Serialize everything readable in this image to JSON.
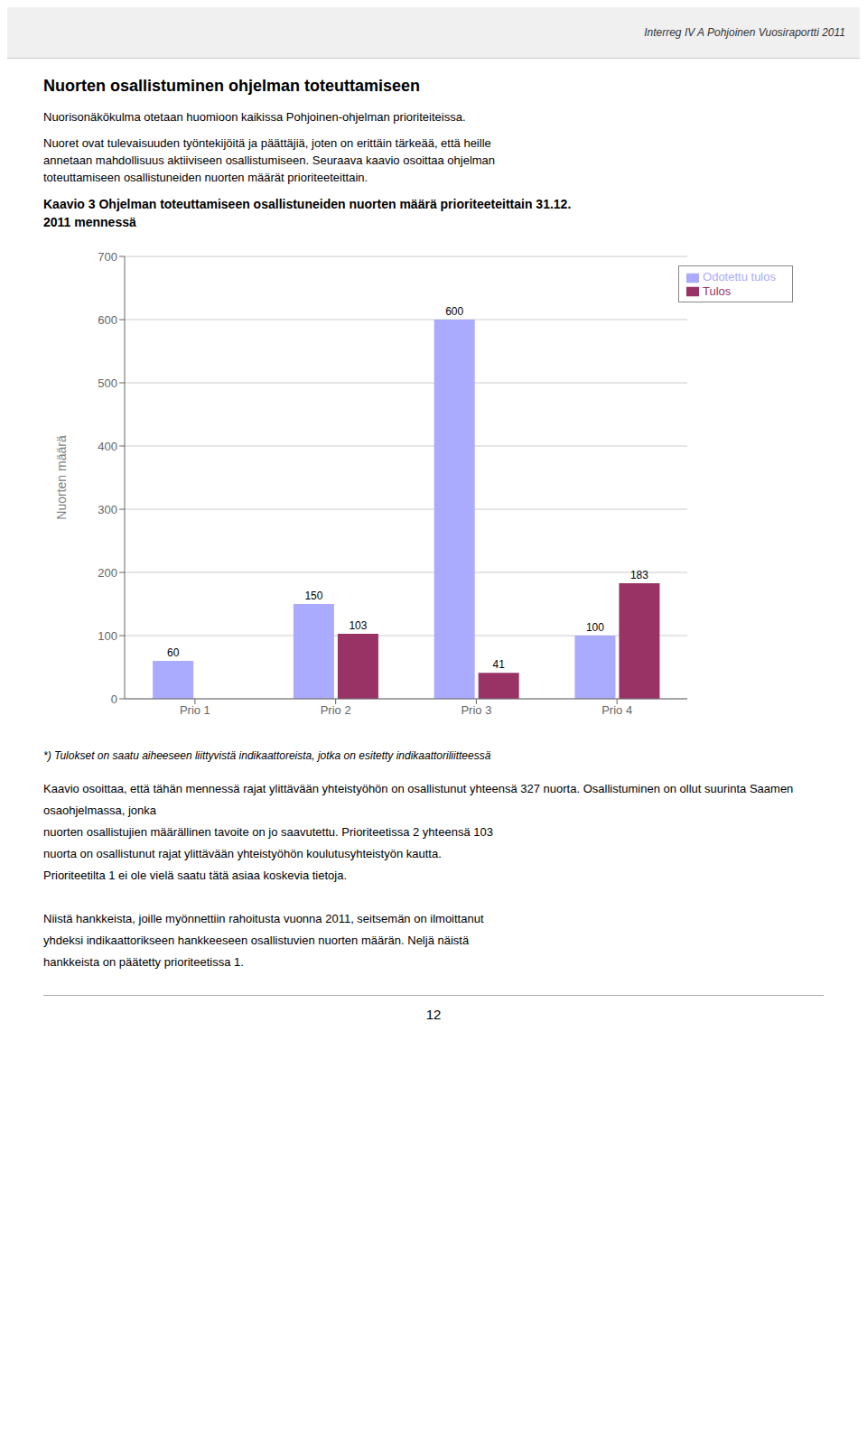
{
  "header": "Interreg IV A Pohjoinen Vuosiraportti 2011",
  "title": "Nuorten osallistuminen ohjelman toteuttamiseen",
  "subtitle": [
    [
      "Nuorisonäkökulma otetaan huomioon kaikissa Pohjoinen-ohjelman prioriteiteissa."
    ],
    [
      "Nuoret ovat tulevaisuuden työntekijöitä ja päättäjiä, joten on erittäin tärkeää, että heille",
      "annetaan mahdollisuus aktiiviseen osallistumiseen. Seuraava kaavio osoittaa ohjelman",
      "toteuttamiseen osallistuneiden nuorten määrät prioriteeteittain."
    ]
  ],
  "note": "*) Tulokset on saatu aiheeseen liittyvistä indikaattoreista, jotka on esitetty indikaattoriliitteessä",
  "body": [
    [
      "Kaavio osoittaa, että tähän mennessä rajat ylittävään yhteistyöhön on osallistunut yhteensä 327 nuorta. Osallistuminen on ollut suurinta Saamen osaohjelmassa, jonka",
      "nuorten osallistujien määrällinen tavoite on jo saavutettu. Prioriteetissa 2 yhteensä 103",
      "nuorta on osallistunut rajat ylittävään yhteistyöhön koulutusyhteistyön kautta.",
      "Prioriteetilta 1 ei ole vielä saatu tätä asiaa koskevia tietoja."
    ],
    [
      "Niistä hankkeista, joille myönnettiin rahoitusta vuonna 2011, seitsemän on ilmoittanut",
      "yhdeksi indikaattorikseen hankkeeseen osallistuvien nuorten määrän. Neljä näistä",
      "hankkeista on päätetty prioriteetissa 1."
    ]
  ],
  "page_number": "12",
  "chart_data": {
    "type": "bar",
    "title": [
      "Kaavio 3 Ohjelman toteuttamiseen osallistuneiden nuorten määrä prioriteeteittain 31.12.",
      "2011 mennessä"
    ],
    "categories": [
      "Prio 1",
      "Prio 2",
      "Prio 3",
      "Prio 4"
    ],
    "series": [
      {
        "name": "Odotettu tulos",
        "color": "#aaaaff",
        "values": [
          60,
          150,
          600,
          100
        ]
      },
      {
        "name": "Tulos",
        "color": "#993366",
        "values": [
          0,
          103,
          41,
          183
        ]
      }
    ],
    "y_label": "Nuorten määrä",
    "ylim": [
      0,
      700
    ],
    "yticks": [
      0,
      100,
      200,
      300,
      400,
      500,
      600,
      700
    ],
    "grid": true,
    "legend": "upper right",
    "data_labels": true
  }
}
